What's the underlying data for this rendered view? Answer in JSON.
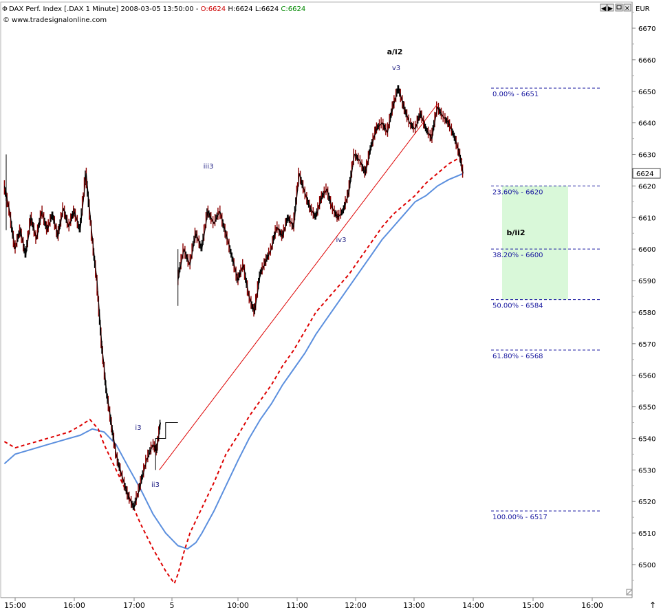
{
  "header": {
    "title": "DAX Perf. Index [.DAX  1 Minute] 2008-03-05 13:50:00 - ",
    "o_label": "O:6624",
    "h_label": " H:6624",
    "l_label": " L:6624",
    "c_label": " C:6624",
    "copyright": "www.tradesignalonline.com",
    "currency": "EUR",
    "last_price": "6624"
  },
  "colors": {
    "background": "#ffffff",
    "axis": "#a0a0a0",
    "price_bar_up": "#000000",
    "price_bar_down": "#8b0000",
    "ma_red": "#dd0000",
    "ma_blue": "#5b8fde",
    "trendline": "#dd0000",
    "fib_line": "#1a1aa0",
    "fib_zone": "#d9f8d9",
    "label_dark": "#1a1a80",
    "o_color": "#cc0000",
    "c_color": "#008800"
  },
  "chart_data": {
    "type": "line",
    "title": "DAX Perf. Index [.DAX  1 Minute]",
    "yrange": [
      6490,
      6680
    ],
    "yticks": [
      6500,
      6510,
      6520,
      6530,
      6540,
      6550,
      6560,
      6570,
      6580,
      6590,
      6600,
      6610,
      6620,
      6630,
      6640,
      6650,
      6660,
      6670
    ],
    "xtick_labels": [
      "15:00",
      "16:00",
      "17:00",
      "5",
      "10:00",
      "11:00",
      "12:00",
      "13:00",
      "14:00",
      "15:00",
      "16:00"
    ],
    "x_range": [
      0,
      50
    ],
    "xtick_positions": [
      1,
      6.5,
      11.5,
      14.5,
      20,
      25.3,
      30.6,
      35.9,
      41.2,
      46.5,
      51.8
    ],
    "price_series": [
      [
        0,
        6620
      ],
      [
        0.5,
        6612
      ],
      [
        1,
        6600
      ],
      [
        1.5,
        6606
      ],
      [
        2,
        6598
      ],
      [
        2.5,
        6610
      ],
      [
        3,
        6603
      ],
      [
        3.5,
        6612
      ],
      [
        4,
        6606
      ],
      [
        4.5,
        6611
      ],
      [
        5,
        6604
      ],
      [
        5.5,
        6613
      ],
      [
        6,
        6607
      ],
      [
        6.5,
        6612
      ],
      [
        7,
        6606
      ],
      [
        7.5,
        6624
      ],
      [
        8,
        6604
      ],
      [
        8.4,
        6590
      ],
      [
        8.8,
        6570
      ],
      [
        9.2,
        6555
      ],
      [
        9.6,
        6545
      ],
      [
        10,
        6535
      ],
      [
        10.5,
        6528
      ],
      [
        11,
        6522
      ],
      [
        11.5,
        6518
      ],
      [
        12,
        6525
      ],
      [
        12.5,
        6533
      ],
      [
        13,
        6538
      ],
      [
        13.3,
        6536
      ],
      [
        13.6,
        6545
      ],
      [
        15,
        6590
      ],
      [
        15.5,
        6600
      ],
      [
        16,
        6595
      ],
      [
        16.5,
        6605
      ],
      [
        17,
        6600
      ],
      [
        17.5,
        6612
      ],
      [
        18,
        6608
      ],
      [
        18.5,
        6612
      ],
      [
        19,
        6605
      ],
      [
        19.5,
        6598
      ],
      [
        20,
        6590
      ],
      [
        20.5,
        6595
      ],
      [
        21,
        6585
      ],
      [
        21.5,
        6580
      ],
      [
        22,
        6592
      ],
      [
        22.5,
        6596
      ],
      [
        23,
        6600
      ],
      [
        23.5,
        6607
      ],
      [
        24,
        6604
      ],
      [
        24.5,
        6610
      ],
      [
        25,
        6607
      ],
      [
        25.5,
        6624
      ],
      [
        26,
        6618
      ],
      [
        26.5,
        6613
      ],
      [
        27,
        6610
      ],
      [
        27.5,
        6616
      ],
      [
        28,
        6619
      ],
      [
        28.5,
        6613
      ],
      [
        29,
        6610
      ],
      [
        29.5,
        6612
      ],
      [
        30,
        6618
      ],
      [
        30.5,
        6630
      ],
      [
        31,
        6628
      ],
      [
        31.5,
        6624
      ],
      [
        32,
        6632
      ],
      [
        32.5,
        6638
      ],
      [
        33,
        6640
      ],
      [
        33.5,
        6637
      ],
      [
        34,
        6645
      ],
      [
        34.5,
        6651
      ],
      [
        35,
        6645
      ],
      [
        35.5,
        6640
      ],
      [
        36,
        6638
      ],
      [
        36.5,
        6643
      ],
      [
        37,
        6638
      ],
      [
        37.5,
        6635
      ],
      [
        38,
        6645
      ],
      [
        38.5,
        6642
      ],
      [
        39,
        6640
      ],
      [
        39.5,
        6636
      ],
      [
        40,
        6630
      ],
      [
        40.3,
        6624
      ]
    ],
    "ma_red_dashed": [
      [
        0,
        6539
      ],
      [
        1,
        6537
      ],
      [
        2,
        6538
      ],
      [
        3,
        6539
      ],
      [
        4,
        6540
      ],
      [
        5,
        6541
      ],
      [
        6,
        6542
      ],
      [
        7,
        6544
      ],
      [
        7.8,
        6546
      ],
      [
        8.5,
        6543
      ],
      [
        9,
        6538
      ],
      [
        10,
        6530
      ],
      [
        11,
        6522
      ],
      [
        12,
        6513
      ],
      [
        13,
        6505
      ],
      [
        14,
        6498
      ],
      [
        14.7,
        6494
      ],
      [
        15,
        6497
      ],
      [
        15.5,
        6504
      ],
      [
        16,
        6510
      ],
      [
        17,
        6518
      ],
      [
        18,
        6526
      ],
      [
        19,
        6535
      ],
      [
        20,
        6541
      ],
      [
        21,
        6547
      ],
      [
        22,
        6552
      ],
      [
        23,
        6557
      ],
      [
        24,
        6563
      ],
      [
        25,
        6568
      ],
      [
        26,
        6574
      ],
      [
        27,
        6580
      ],
      [
        28,
        6584
      ],
      [
        29,
        6588
      ],
      [
        30,
        6592
      ],
      [
        31,
        6597
      ],
      [
        32,
        6602
      ],
      [
        33,
        6607
      ],
      [
        34,
        6611
      ],
      [
        35,
        6614
      ],
      [
        36,
        6617
      ],
      [
        37,
        6621
      ],
      [
        38,
        6624
      ],
      [
        39,
        6627
      ],
      [
        40,
        6629
      ],
      [
        40.3,
        6628
      ]
    ],
    "ma_blue": [
      [
        0,
        6532
      ],
      [
        1,
        6535
      ],
      [
        2,
        6536
      ],
      [
        3,
        6537
      ],
      [
        4,
        6538
      ],
      [
        5,
        6539
      ],
      [
        6,
        6540
      ],
      [
        7,
        6541
      ],
      [
        8,
        6543
      ],
      [
        9,
        6542
      ],
      [
        10,
        6538
      ],
      [
        11,
        6531
      ],
      [
        12,
        6524
      ],
      [
        13,
        6516
      ],
      [
        14,
        6510
      ],
      [
        15,
        6506
      ],
      [
        15.8,
        6505
      ],
      [
        16.5,
        6507
      ],
      [
        17,
        6510
      ],
      [
        18,
        6517
      ],
      [
        19,
        6525
      ],
      [
        20,
        6533
      ],
      [
        21,
        6540
      ],
      [
        22,
        6546
      ],
      [
        23,
        6551
      ],
      [
        24,
        6557
      ],
      [
        25,
        6562
      ],
      [
        26,
        6567
      ],
      [
        27,
        6573
      ],
      [
        28,
        6578
      ],
      [
        29,
        6583
      ],
      [
        30,
        6588
      ],
      [
        31,
        6593
      ],
      [
        32,
        6598
      ],
      [
        33,
        6603
      ],
      [
        34,
        6607
      ],
      [
        35,
        6611
      ],
      [
        36,
        6615
      ],
      [
        37,
        6617
      ],
      [
        38,
        6620
      ],
      [
        39,
        6622
      ],
      [
        40,
        6623.5
      ],
      [
        40.3,
        6624
      ]
    ],
    "i3_rect": {
      "x1": 13.0,
      "x2": 14.8,
      "y_top": 6545,
      "y_bottom": 6540
    },
    "trendline": {
      "x1": 13.5,
      "y1": 6530,
      "x2": 38,
      "y2": 6646
    },
    "fib_levels": [
      {
        "label": "0.00% - 6651",
        "value": 6651
      },
      {
        "label": "23.60% - 6620",
        "value": 6620
      },
      {
        "label": "38.20% - 6600",
        "value": 6600
      },
      {
        "label": "50.00% - 6584",
        "value": 6584
      },
      {
        "label": "61.80% - 6568",
        "value": 6568
      },
      {
        "label": "100.00% - 6517",
        "value": 6517
      }
    ],
    "fib_x": [
      44,
      54
    ],
    "fib_zone": {
      "y_top": 6620,
      "y_bottom": 6584,
      "x1": 45,
      "x2": 51
    },
    "wave_labels": [
      {
        "text": "a/i2",
        "x": 35,
        "y": 6661,
        "bold": true
      },
      {
        "text": "v3",
        "x": 35,
        "y": 6656
      },
      {
        "text": "iii3",
        "x": 18.5,
        "y": 6627
      },
      {
        "text": "iv3",
        "x": 30.2,
        "y": 6601
      },
      {
        "text": "i3",
        "x": 12.2,
        "y": 6544
      },
      {
        "text": "ii3",
        "x": 13.7,
        "y": 6527
      },
      {
        "text": "b/ii2",
        "x": 46.2,
        "y": 6605,
        "bold": true
      }
    ]
  }
}
